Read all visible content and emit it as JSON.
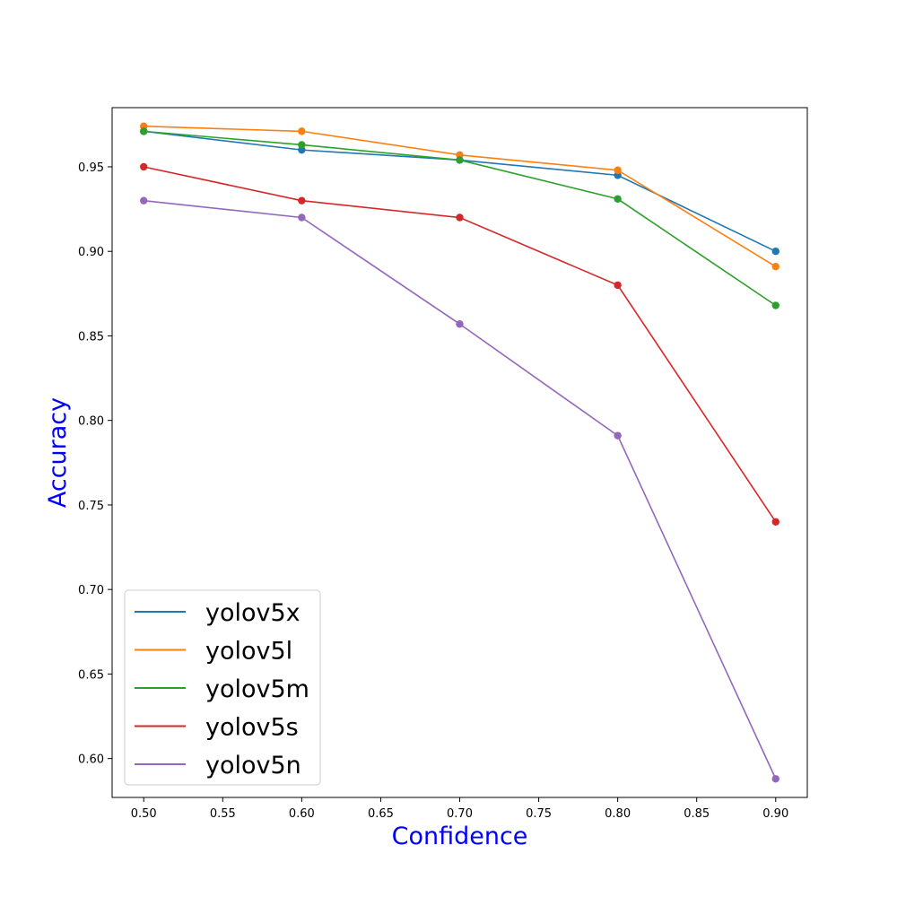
{
  "chart_data": {
    "type": "line",
    "title": "",
    "xlabel": "Confidence",
    "ylabel": "Accuracy",
    "x": [
      0.5,
      0.6,
      0.7,
      0.8,
      0.9
    ],
    "xlim": [
      0.48,
      0.92
    ],
    "ylim": [
      0.577,
      0.985
    ],
    "xticks": [
      "0.50",
      "0.55",
      "0.60",
      "0.65",
      "0.70",
      "0.75",
      "0.80",
      "0.85",
      "0.90"
    ],
    "yticks": [
      "0.60",
      "0.65",
      "0.70",
      "0.75",
      "0.80",
      "0.85",
      "0.90",
      "0.95"
    ],
    "grid": false,
    "legend_position": "lower-left",
    "series": [
      {
        "name": "yolov5x",
        "color": "#1f77b4",
        "values": [
          0.971,
          0.96,
          0.954,
          0.945,
          0.9
        ]
      },
      {
        "name": "yolov5l",
        "color": "#ff7f0e",
        "values": [
          0.974,
          0.971,
          0.957,
          0.948,
          0.891
        ]
      },
      {
        "name": "yolov5m",
        "color": "#2ca02c",
        "values": [
          0.971,
          0.963,
          0.954,
          0.931,
          0.868
        ]
      },
      {
        "name": "yolov5s",
        "color": "#d62728",
        "values": [
          0.95,
          0.93,
          0.92,
          0.88,
          0.74
        ]
      },
      {
        "name": "yolov5n",
        "color": "#9467bd",
        "values": [
          0.93,
          0.92,
          0.857,
          0.791,
          0.588
        ]
      }
    ]
  }
}
